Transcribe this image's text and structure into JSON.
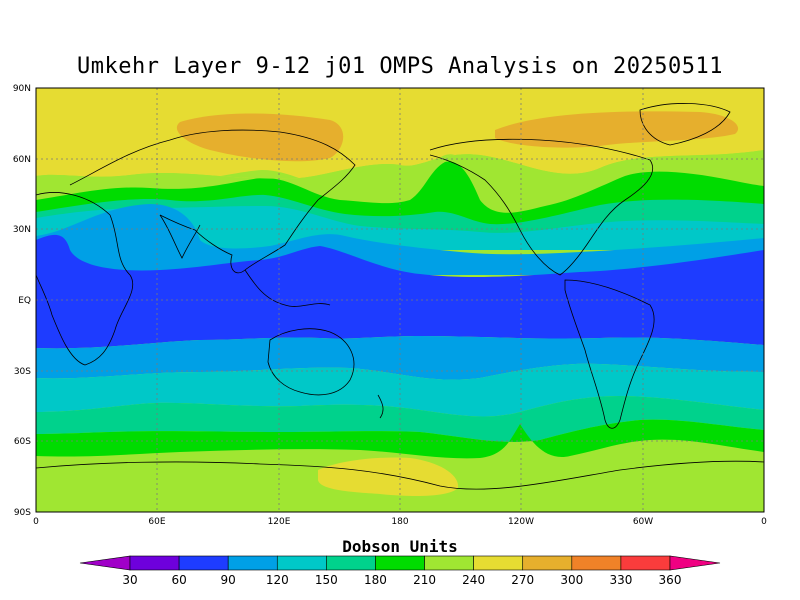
{
  "title": "Umkehr Layer 9-12 j01 OMPS Analysis on 20250511",
  "colorbar": {
    "label": "Dobson Units",
    "ticks": [
      "30",
      "60",
      "90",
      "120",
      "150",
      "180",
      "210",
      "240",
      "270",
      "300",
      "330",
      "360"
    ],
    "colors": [
      "#a000c8",
      "#6e00dc",
      "#1e3cff",
      "#00a0e6",
      "#00c8c8",
      "#00d28c",
      "#00dc00",
      "#a0e632",
      "#e6dc32",
      "#e6af2d",
      "#f08228",
      "#fa3c3c",
      "#f00082"
    ]
  },
  "axes": {
    "lat_labels": [
      "90N",
      "60N",
      "30N",
      "EQ",
      "30S",
      "60S",
      "90S"
    ],
    "lon_labels": [
      "0",
      "60E",
      "120E",
      "180",
      "120W",
      "60W",
      "0"
    ]
  },
  "map_data": {
    "bands_du": [
      {
        "zone": "north-polar",
        "value_du": 255
      },
      {
        "zone": "north-high-lat-ridge",
        "value_du": 285
      },
      {
        "zone": "north-midlat",
        "value_du": 225
      },
      {
        "zone": "north-jet",
        "value_du": 195
      },
      {
        "zone": "north-subtropics",
        "value_du": 165
      },
      {
        "zone": "north-tropics-edge",
        "value_du": 105
      },
      {
        "zone": "tropics",
        "value_du": 75
      },
      {
        "zone": "south-tropics-edge",
        "value_du": 105
      },
      {
        "zone": "south-subtropics",
        "value_du": 135
      },
      {
        "zone": "south-midlat",
        "value_du": 165
      },
      {
        "zone": "south-jet",
        "value_du": 195
      },
      {
        "zone": "south-polar",
        "value_du": 225
      },
      {
        "zone": "antarctic-max",
        "value_du": 255
      }
    ]
  }
}
